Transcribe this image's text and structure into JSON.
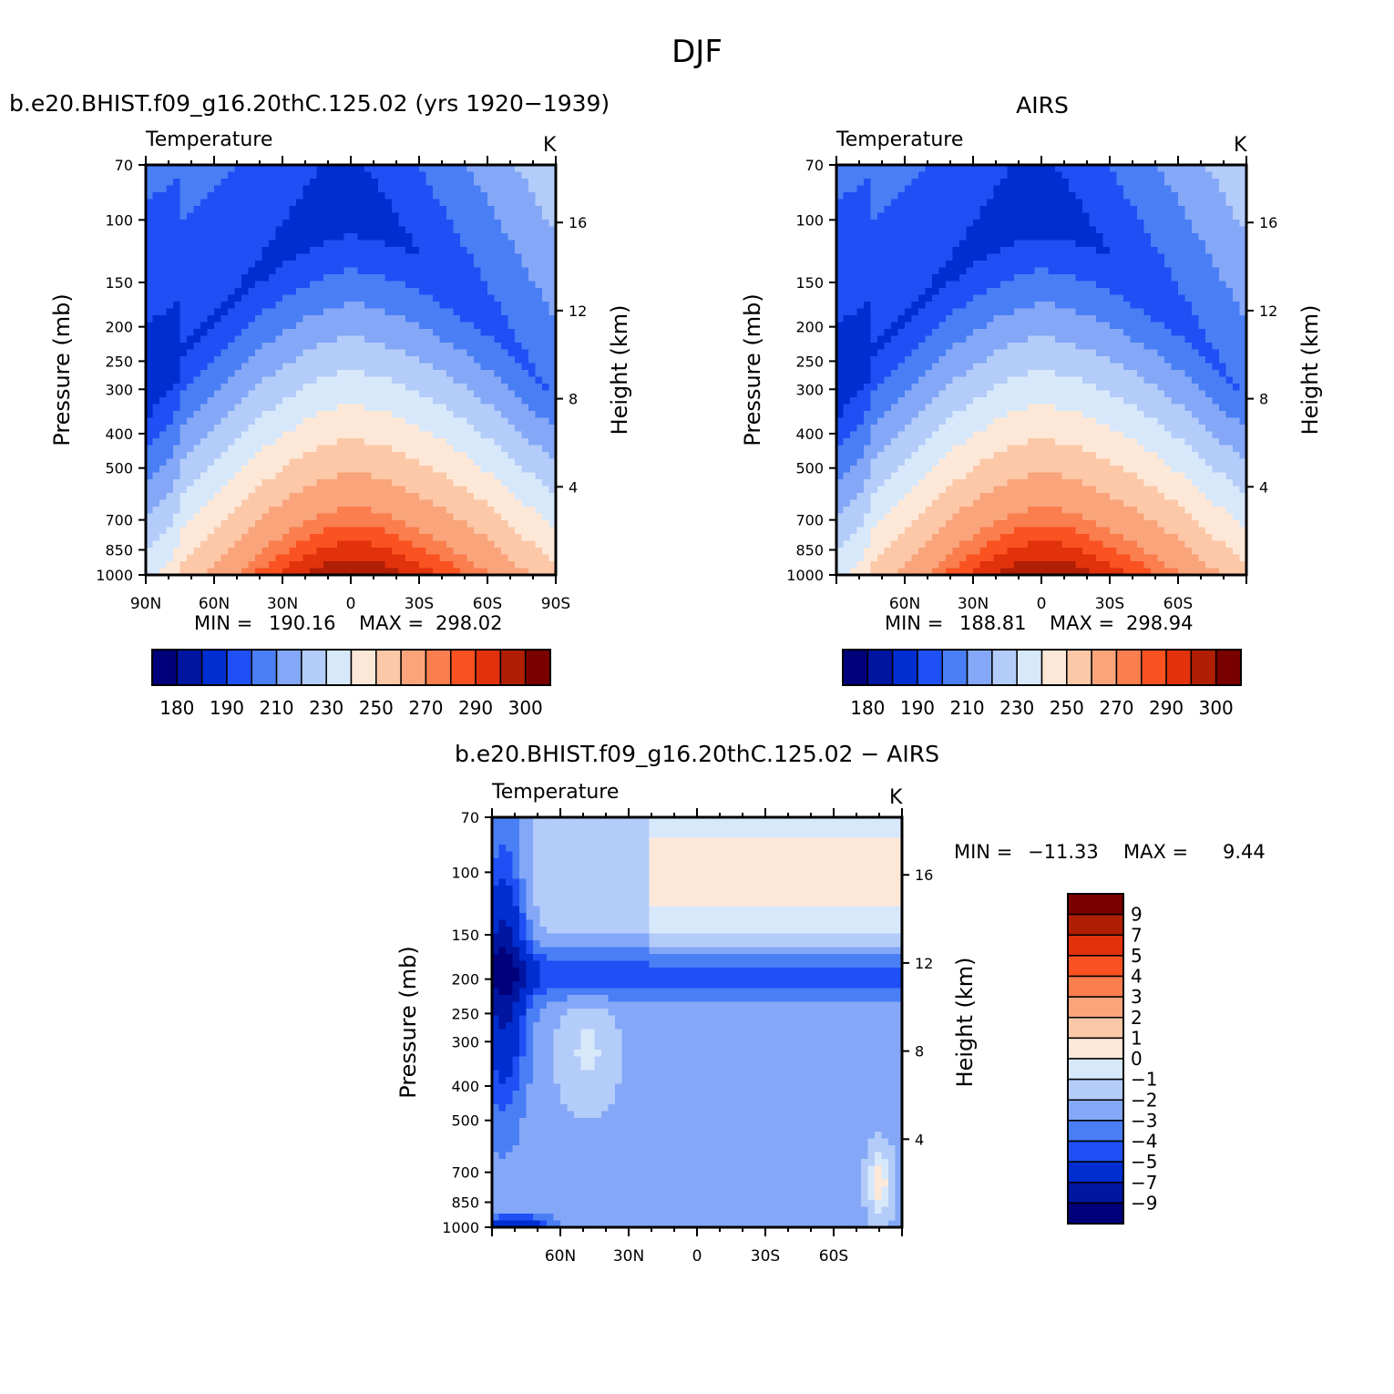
{
  "figure": {
    "title": "DJF"
  },
  "colors": {
    "temperature": [
      "#00007a",
      "#0015a0",
      "#002ed1",
      "#1e50f5",
      "#4a7ef5",
      "#84a8f7",
      "#b3ccf9",
      "#d8e8fb",
      "#fde8d8",
      "#fcc8a8",
      "#faa47c",
      "#fa7e4e",
      "#fa5221",
      "#e1320c",
      "#b01e04",
      "#7a0000"
    ],
    "difference": [
      "#00007a",
      "#0015a0",
      "#002ed1",
      "#1e50f5",
      "#4a7ef5",
      "#84a8f7",
      "#b3ccf9",
      "#d8e8fb",
      "#fde8d8",
      "#fcc8a8",
      "#faa47c",
      "#fa7e4e",
      "#fa5221",
      "#e1320c",
      "#b01e04",
      "#7a0000"
    ]
  },
  "chart_data": [
    {
      "id": "model",
      "type": "contour",
      "title": "b.e20.BHIST.f09_g16.20thC.125.02 (yrs 1920−1939)",
      "left_label": "Temperature",
      "right_label": "K",
      "ylabel": "Pressure (mb)",
      "y2label": "Height (km)",
      "yticks": [
        70,
        100,
        150,
        200,
        250,
        300,
        400,
        500,
        700,
        850,
        1000
      ],
      "y2ticks": [
        16,
        12,
        8,
        4
      ],
      "xticks": [
        "90N",
        "60N",
        "30N",
        "0",
        "30S",
        "60S",
        "90S"
      ],
      "min": "190.16",
      "max": "298.02",
      "min_label": "MIN =",
      "max_label": "MAX =",
      "colorbar_labels": [
        "180",
        "190",
        "210",
        "230",
        "250",
        "270",
        "290",
        "300"
      ],
      "fields": {
        "tropopause_T": 193,
        "polar_upper_T": 209,
        "surface_equator_T": 299,
        "surface_pole_T": 250
      }
    },
    {
      "id": "obs",
      "type": "contour",
      "title": "AIRS",
      "left_label": "Temperature",
      "right_label": "K",
      "ylabel": "Pressure (mb)",
      "y2label": "Height (km)",
      "yticks": [
        70,
        100,
        150,
        200,
        250,
        300,
        400,
        500,
        700,
        850,
        1000
      ],
      "y2ticks": [
        16,
        12,
        8,
        4
      ],
      "xticks": [
        "60N",
        "30N",
        "0",
        "30S",
        "60S"
      ],
      "min": "188.81",
      "max": "298.94",
      "min_label": "MIN =",
      "max_label": "MAX =",
      "colorbar_labels": [
        "180",
        "190",
        "210",
        "230",
        "250",
        "270",
        "290",
        "300"
      ]
    },
    {
      "id": "diff",
      "type": "contour",
      "title": "b.e20.BHIST.f09_g16.20thC.125.02 − AIRS",
      "left_label": "Temperature",
      "right_label": "K",
      "ylabel": "Pressure (mb)",
      "y2label": "Height (km)",
      "yticks": [
        70,
        100,
        150,
        200,
        250,
        300,
        400,
        500,
        700,
        850,
        1000
      ],
      "y2ticks": [
        16,
        12,
        8,
        4
      ],
      "xticks": [
        "60N",
        "30N",
        "0",
        "30S",
        "60S"
      ],
      "min": "−11.33",
      "max": "9.44",
      "min_label": "MIN =",
      "max_label": "MAX =",
      "colorbar_labels": [
        "9",
        "7",
        "5",
        "4",
        "3",
        "2",
        "1",
        "0",
        "−1",
        "−2",
        "−3",
        "−4",
        "−5",
        "−7",
        "−9"
      ]
    }
  ]
}
